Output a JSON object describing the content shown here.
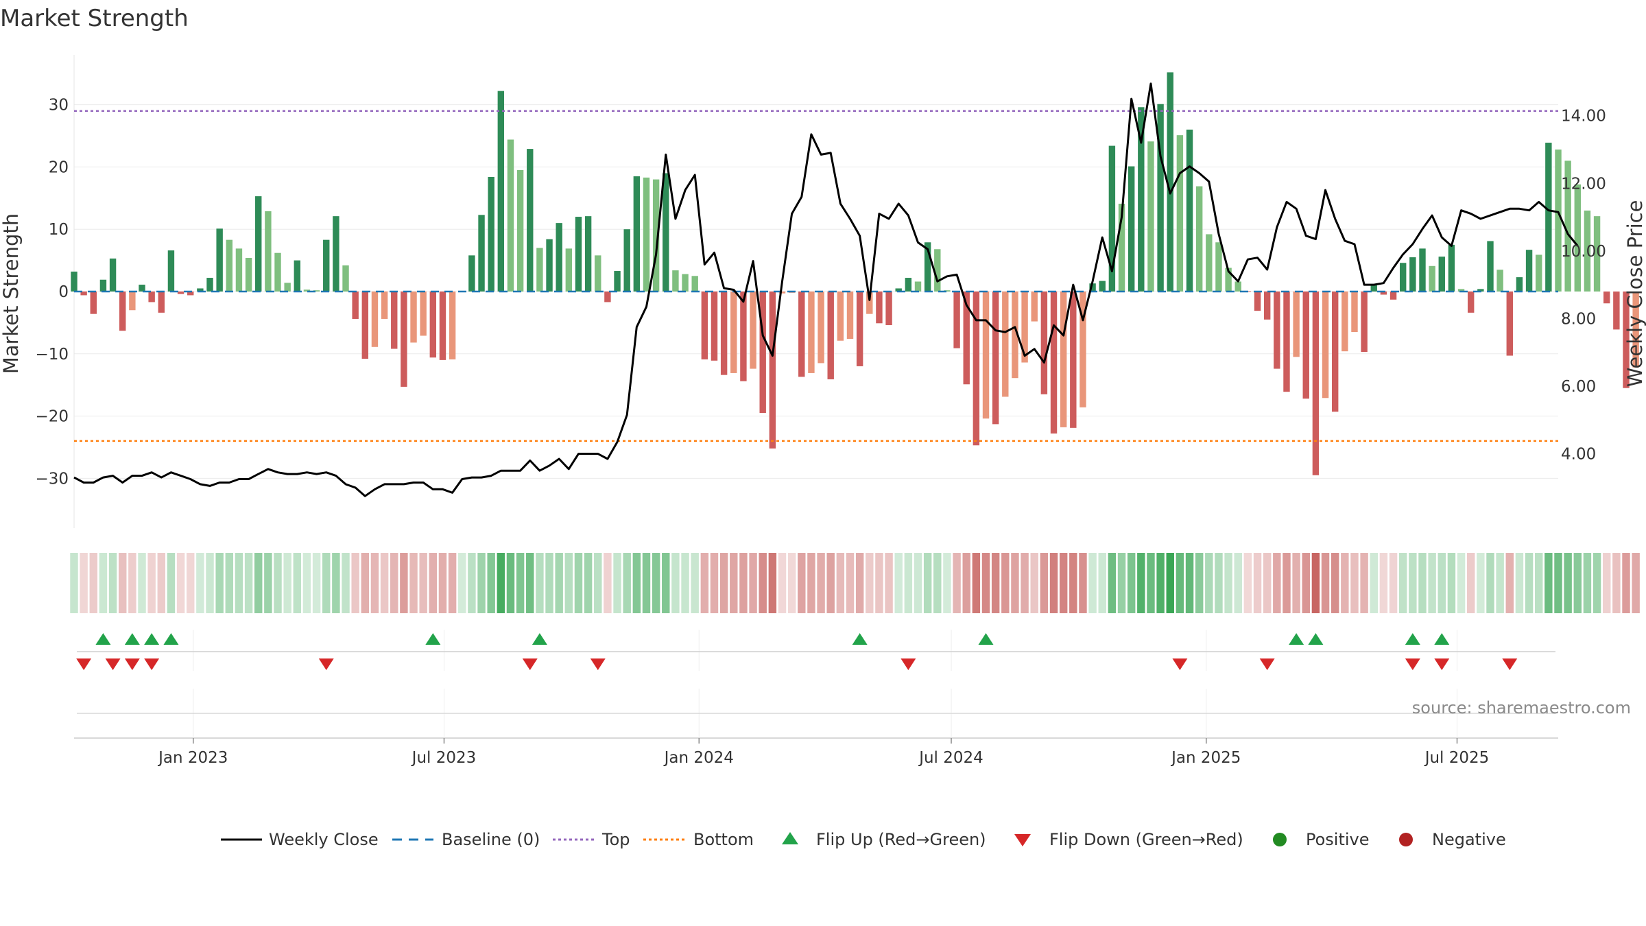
{
  "chart_data": {
    "type": "bar",
    "title": "Market Strength",
    "ylabel": "Market Strength",
    "y2label": "Weekly Close Price",
    "ylim": [
      -38,
      38
    ],
    "y2lim": [
      1.8,
      15.8
    ],
    "yticks": [
      30,
      20,
      10,
      0,
      -10,
      -20,
      -30
    ],
    "ytick_labels": [
      "30",
      "20",
      "10",
      "0",
      "−10",
      "−20",
      "−30"
    ],
    "y2ticks": [
      14,
      12,
      10,
      8,
      6,
      4
    ],
    "y2tick_labels": [
      "14.00",
      "12.00",
      "10.00",
      "8.00",
      "6.00",
      "4.00"
    ],
    "x_start": "2022-10-07",
    "x_end": "2025-09-12",
    "xticks": [
      "2023-01-01",
      "2023-07-01",
      "2024-01-01",
      "2024-07-01",
      "2025-01-01",
      "2025-07-01"
    ],
    "xtick_labels": [
      "Jan 2023",
      "Jul 2023",
      "Jan 2024",
      "Jul 2024",
      "Jan 2025",
      "Jul 2025"
    ],
    "top_level": 29,
    "bottom_level": -24,
    "colors": {
      "pos_strong": "#2e8b57",
      "pos_weak": "#7fbf7f",
      "neg_strong": "#cd5c5c",
      "neg_weak": "#e9967a",
      "close_line": "#000000",
      "baseline": "#1f77b4",
      "top": "#9467bd",
      "bottom": "#ff7f0e",
      "flip_up": "#22a34a",
      "flip_down": "#d62728",
      "positive_dot": "#228b22",
      "negative_dot": "#b22222"
    },
    "strength": [
      3.2,
      -0.6,
      -3.6,
      1.9,
      5.3,
      -6.3,
      -3.0,
      1.1,
      -1.7,
      -3.4,
      6.6,
      -0.4,
      -0.6,
      0.5,
      2.2,
      10.1,
      8.3,
      6.9,
      5.4,
      15.3,
      12.9,
      6.2,
      1.4,
      5.0,
      0.3,
      0.2,
      8.3,
      12.1,
      4.2,
      -4.4,
      -10.8,
      -8.9,
      -4.4,
      -9.2,
      -15.3,
      -8.2,
      -7.1,
      -10.6,
      -11.0,
      -10.9,
      0.1,
      5.8,
      12.3,
      18.4,
      32.2,
      24.4,
      19.5,
      22.9,
      7.0,
      8.4,
      11.0,
      6.9,
      12.0,
      12.1,
      5.8,
      -1.7,
      3.3,
      10.0,
      18.5,
      18.3,
      18.0,
      19.0,
      3.4,
      2.8,
      2.5,
      -10.9,
      -11.1,
      -13.4,
      -13.1,
      -14.4,
      -12.4,
      -19.5,
      -25.2,
      -0.3,
      -0.2,
      -13.7,
      -13.1,
      -11.5,
      -14.1,
      -7.9,
      -7.6,
      -12.0,
      -3.6,
      -5.1,
      -5.4,
      0.5,
      2.2,
      1.6,
      7.9,
      6.8,
      0.2,
      -9.1,
      -14.9,
      -24.7,
      -20.4,
      -21.3,
      -16.9,
      -13.9,
      -11.4,
      -4.8,
      -16.5,
      -22.8,
      -21.8,
      -21.9,
      -18.6,
      1.3,
      1.7,
      23.4,
      14.1,
      20.1,
      29.6,
      24.1,
      30.1,
      35.2,
      25.1,
      26.0,
      16.9,
      9.2,
      7.9,
      3.8,
      1.6,
      -0.1,
      -3.1,
      -4.5,
      -12.4,
      -16.1,
      -10.5,
      -17.2,
      -29.5,
      -17.1,
      -19.3,
      -9.6,
      -6.5,
      -9.7,
      1.0,
      -0.5,
      -1.3,
      4.6,
      5.5,
      6.9,
      4.1,
      5.6,
      7.5,
      0.4,
      -3.4,
      0.4,
      8.1,
      3.5,
      -10.3,
      2.3,
      6.7,
      5.9,
      23.9,
      22.8,
      21.0,
      17.2,
      13.0,
      12.1,
      -1.9,
      -6.1,
      -15.5,
      -12.2
    ],
    "weekly_close": [
      3.3,
      3.15,
      3.15,
      3.3,
      3.35,
      3.15,
      3.35,
      3.35,
      3.45,
      3.3,
      3.45,
      3.35,
      3.25,
      3.1,
      3.05,
      3.15,
      3.15,
      3.25,
      3.25,
      3.4,
      3.55,
      3.45,
      3.4,
      3.4,
      3.45,
      3.4,
      3.45,
      3.35,
      3.1,
      3.0,
      2.75,
      2.95,
      3.1,
      3.1,
      3.1,
      3.15,
      3.15,
      2.95,
      2.95,
      2.85,
      3.25,
      3.3,
      3.3,
      3.35,
      3.5,
      3.5,
      3.5,
      3.8,
      3.5,
      3.65,
      3.85,
      3.55,
      4.0,
      4.0,
      4.0,
      3.85,
      4.35,
      5.15,
      7.75,
      8.35,
      9.9,
      12.85,
      10.95,
      11.8,
      12.25,
      9.6,
      9.95,
      8.9,
      8.85,
      8.5,
      9.7,
      7.5,
      6.9,
      9.1,
      11.1,
      11.6,
      13.45,
      12.85,
      12.9,
      11.4,
      10.95,
      10.45,
      8.55,
      11.1,
      10.95,
      11.4,
      11.05,
      10.25,
      10.05,
      9.1,
      9.25,
      9.3,
      8.4,
      7.95,
      7.95,
      7.65,
      7.6,
      7.75,
      6.9,
      7.1,
      6.7,
      7.8,
      7.5,
      9.0,
      7.95,
      9.1,
      10.4,
      9.4,
      11.0,
      14.5,
      13.2,
      14.95,
      12.8,
      11.7,
      12.3,
      12.5,
      12.3,
      12.05,
      10.5,
      9.4,
      9.1,
      9.75,
      9.8,
      9.45,
      10.7,
      11.45,
      11.25,
      10.45,
      10.35,
      11.8,
      10.95,
      10.3,
      10.2,
      9.0,
      9.0,
      9.05,
      9.5,
      9.9,
      10.2,
      10.65,
      11.05,
      10.4,
      10.15,
      11.2,
      11.1,
      10.95,
      11.05,
      11.15,
      11.25,
      11.25,
      11.2,
      11.45,
      11.2,
      11.15,
      10.5,
      10.15
    ],
    "flip_up_dates": [
      "2022-10-28",
      "2022-11-18",
      "2022-12-02",
      "2022-12-16",
      "2023-06-23",
      "2023-09-08",
      "2024-04-26",
      "2024-07-26",
      "2025-03-07",
      "2025-03-21",
      "2025-05-30",
      "2025-06-20"
    ],
    "flip_down_dates": [
      "2022-10-14",
      "2022-11-04",
      "2022-11-18",
      "2022-12-02",
      "2023-04-07",
      "2023-09-01",
      "2023-10-20",
      "2024-05-31",
      "2024-12-13",
      "2025-02-14",
      "2025-05-30",
      "2025-06-20",
      "2025-08-08"
    ],
    "source_note": "source: sharemaestro.com",
    "legend": [
      {
        "label": "Weekly Close",
        "kind": "line-solid"
      },
      {
        "label": "Baseline (0)",
        "kind": "line-dash"
      },
      {
        "label": "Top",
        "kind": "line-dot-purple"
      },
      {
        "label": "Bottom",
        "kind": "line-dot-orange"
      },
      {
        "label": "Flip Up (Red→Green)",
        "kind": "tri-up"
      },
      {
        "label": "Flip Down (Green→Red)",
        "kind": "tri-down"
      },
      {
        "label": "Positive",
        "kind": "dot-green"
      },
      {
        "label": "Negative",
        "kind": "dot-red"
      }
    ]
  }
}
